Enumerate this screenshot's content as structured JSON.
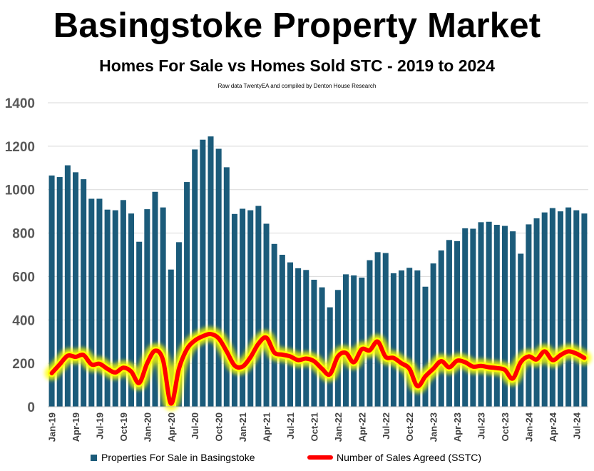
{
  "chart_data": {
    "type": "bar",
    "title": "Basingstoke Property Market",
    "subtitle": "Homes For Sale vs Homes Sold STC - 2019 to 2024",
    "source": "Raw data TwentyEA and compiled by Denton House Research",
    "ylim": [
      0,
      1400
    ],
    "yticks": [
      0,
      200,
      400,
      600,
      800,
      1000,
      1200,
      1400
    ],
    "grid": true,
    "legend_position": "bottom",
    "months": [
      "Jan-19",
      "Feb-19",
      "Mar-19",
      "Apr-19",
      "May-19",
      "Jun-19",
      "Jul-19",
      "Aug-19",
      "Sep-19",
      "Oct-19",
      "Nov-19",
      "Dec-19",
      "Jan-20",
      "Feb-20",
      "Mar-20",
      "Apr-20",
      "May-20",
      "Jun-20",
      "Jul-20",
      "Aug-20",
      "Sep-20",
      "Oct-20",
      "Nov-20",
      "Dec-20",
      "Jan-21",
      "Feb-21",
      "Mar-21",
      "Apr-21",
      "May-21",
      "Jun-21",
      "Jul-21",
      "Aug-21",
      "Sep-21",
      "Oct-21",
      "Nov-21",
      "Dec-21",
      "Jan-22",
      "Feb-22",
      "Mar-22",
      "Apr-22",
      "May-22",
      "Jun-22",
      "Jul-22",
      "Aug-22",
      "Sep-22",
      "Oct-22",
      "Nov-22",
      "Dec-22",
      "Jan-23",
      "Feb-23",
      "Mar-23",
      "Apr-23",
      "May-23",
      "Jun-23",
      "Jul-23",
      "Aug-23",
      "Sep-23",
      "Oct-23",
      "Nov-23",
      "Dec-23",
      "Jan-24",
      "Feb-24",
      "Mar-24",
      "Apr-24",
      "May-24",
      "Jun-24",
      "Jul-24",
      "Aug-24"
    ],
    "tick_labels": [
      "Jan-19",
      "Apr-19",
      "Jul-19",
      "Oct-19",
      "Jan-20",
      "Apr-20",
      "Jul-20",
      "Oct-20",
      "Jan-21",
      "Apr-21",
      "Jul-21",
      "Oct-21",
      "Jan-22",
      "Apr-22",
      "Jul-22",
      "Oct-22",
      "Jan-23",
      "Apr-23",
      "Jul-23",
      "Oct-23",
      "Jan-24",
      "Apr-24",
      "Jul-24"
    ],
    "series": [
      {
        "name": "Properties For Sale in Basingstoke",
        "type": "bar",
        "color": "#1b5b7a",
        "values": [
          1065,
          1058,
          1112,
          1080,
          1048,
          958,
          958,
          908,
          905,
          952,
          890,
          760,
          910,
          990,
          918,
          632,
          758,
          1035,
          1185,
          1230,
          1245,
          1188,
          1103,
          888,
          912,
          905,
          925,
          843,
          750,
          700,
          665,
          638,
          630,
          585,
          550,
          458,
          538,
          610,
          605,
          595,
          675,
          712,
          708,
          615,
          628,
          640,
          628,
          553,
          660,
          720,
          768,
          763,
          822,
          820,
          850,
          852,
          838,
          833,
          808,
          705,
          840,
          868,
          895,
          915,
          900,
          918,
          905,
          890
        ]
      },
      {
        "name": "Number of Sales Agreed (SSTC)",
        "type": "line",
        "color": "#ff0000",
        "glow_color": "#ffff00",
        "values": [
          155,
          195,
          235,
          230,
          238,
          195,
          198,
          175,
          158,
          180,
          162,
          110,
          200,
          258,
          215,
          15,
          175,
          265,
          305,
          325,
          335,
          315,
          255,
          190,
          185,
          228,
          290,
          318,
          250,
          240,
          232,
          215,
          222,
          210,
          175,
          150,
          232,
          248,
          205,
          265,
          260,
          300,
          230,
          225,
          200,
          175,
          95,
          140,
          175,
          210,
          182,
          212,
          205,
          185,
          188,
          182,
          178,
          170,
          130,
          205,
          232,
          218,
          255,
          215,
          238,
          255,
          245,
          225
        ]
      }
    ]
  }
}
